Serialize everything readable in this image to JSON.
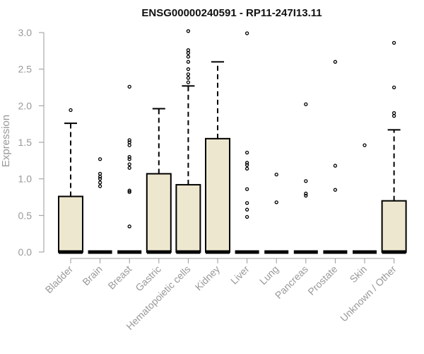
{
  "chart_data": {
    "type": "boxplot",
    "title": "ENSG00000240591 - RP11-247I13.11",
    "ylabel": "Expression",
    "xlabel": "",
    "ylim": [
      0,
      3.0
    ],
    "yticks": [
      "0.0",
      "0.5",
      "1.0",
      "1.5",
      "2.0",
      "2.5",
      "3.0"
    ],
    "grid": false,
    "colors": {
      "box_fill": "#ede7cf",
      "box_stroke": "#000000",
      "axis": "#999999"
    },
    "categories": [
      "Bladder",
      "Brain",
      "Breast",
      "Gastric",
      "Hematopoietic cells",
      "Kidney",
      "Liver",
      "Lung",
      "Pancreas",
      "Prostate",
      "Skin",
      "Unknown / Other"
    ],
    "boxes": [
      {
        "q1": 0,
        "median": 0,
        "q3": 0.76,
        "whisker_low": 0,
        "whisker_high": 1.76,
        "outliers": [
          1.94
        ]
      },
      {
        "q1": 0,
        "median": 0,
        "q3": 0,
        "whisker_low": 0,
        "whisker_high": 0,
        "outliers": [
          0.9,
          0.95,
          1.0,
          1.03,
          1.07,
          1.27
        ]
      },
      {
        "q1": 0,
        "median": 0,
        "q3": 0,
        "whisker_low": 0,
        "whisker_high": 0,
        "outliers": [
          0.35,
          0.82,
          0.84,
          1.15,
          1.2,
          1.27,
          1.3,
          1.46,
          1.5,
          1.53,
          2.26
        ]
      },
      {
        "q1": 0,
        "median": 0,
        "q3": 1.07,
        "whisker_low": 0,
        "whisker_high": 1.96,
        "outliers": []
      },
      {
        "q1": 0,
        "median": 0,
        "q3": 0.92,
        "whisker_low": 0,
        "whisker_high": 2.27,
        "outliers": [
          2.32,
          2.38,
          2.43,
          2.5,
          2.6,
          2.67,
          2.72,
          2.76,
          3.02
        ]
      },
      {
        "q1": 0,
        "median": 0,
        "q3": 1.55,
        "whisker_low": 0,
        "whisker_high": 2.6,
        "outliers": []
      },
      {
        "q1": 0,
        "median": 0,
        "q3": 0,
        "whisker_low": 0,
        "whisker_high": 0,
        "outliers": [
          0.48,
          0.58,
          0.67,
          0.86,
          1.14,
          1.19,
          1.22,
          1.36,
          2.99
        ]
      },
      {
        "q1": 0,
        "median": 0,
        "q3": 0,
        "whisker_low": 0,
        "whisker_high": 0,
        "outliers": [
          0.68,
          1.06
        ]
      },
      {
        "q1": 0,
        "median": 0,
        "q3": 0,
        "whisker_low": 0,
        "whisker_high": 0,
        "outliers": [
          0.77,
          0.8,
          0.97,
          2.02
        ]
      },
      {
        "q1": 0,
        "median": 0,
        "q3": 0,
        "whisker_low": 0,
        "whisker_high": 0,
        "outliers": [
          0.85,
          1.18,
          2.6
        ]
      },
      {
        "q1": 0,
        "median": 0,
        "q3": 0,
        "whisker_low": 0,
        "whisker_high": 0,
        "outliers": [
          1.46
        ]
      },
      {
        "q1": 0,
        "median": 0,
        "q3": 0.7,
        "whisker_low": 0,
        "whisker_high": 1.67,
        "outliers": [
          1.86,
          1.9,
          2.25,
          2.86
        ]
      }
    ]
  }
}
